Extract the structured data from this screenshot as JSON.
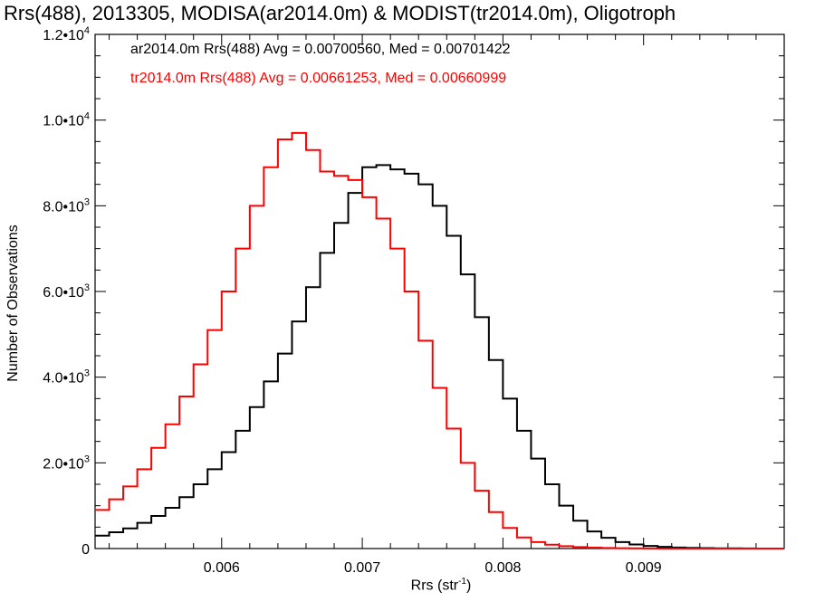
{
  "chart_data": {
    "type": "line",
    "title": "Rrs(488), 2013305, MODISA(ar2014.0m) & MODIST(tr2014.0m), Oligotroph",
    "xlabel_main": "Rrs (str",
    "xlabel_sup": "-1",
    "xlabel_tail": ")",
    "ylabel": "Number of Observations",
    "xlim": [
      0.0051,
      0.01
    ],
    "ylim": [
      0,
      12000
    ],
    "x_ticks": [
      {
        "value": 0.006,
        "label": "0.006"
      },
      {
        "value": 0.007,
        "label": "0.007"
      },
      {
        "value": 0.008,
        "label": "0.008"
      },
      {
        "value": 0.009,
        "label": "0.009"
      }
    ],
    "y_ticks": [
      {
        "value": 0,
        "base": "0",
        "exp": ""
      },
      {
        "value": 2000,
        "base": "2.0•10",
        "exp": "3"
      },
      {
        "value": 4000,
        "base": "4.0•10",
        "exp": "3"
      },
      {
        "value": 6000,
        "base": "6.0•10",
        "exp": "3"
      },
      {
        "value": 8000,
        "base": "8.0•10",
        "exp": "3"
      },
      {
        "value": 10000,
        "base": "1.0•10",
        "exp": "4"
      },
      {
        "value": 12000,
        "base": "1.2•10",
        "exp": "4"
      }
    ],
    "series": [
      {
        "name": "ar2014.0m Rrs(488) Avg = 0.00700560, Med = 0.00701422",
        "color": "#000000",
        "x": [
          0.0051,
          0.0052,
          0.0053,
          0.0054,
          0.0055,
          0.0056,
          0.0057,
          0.0058,
          0.0059,
          0.006,
          0.0061,
          0.0062,
          0.0063,
          0.0064,
          0.0065,
          0.0066,
          0.0067,
          0.0068,
          0.0069,
          0.007,
          0.0071,
          0.0072,
          0.0073,
          0.0074,
          0.0075,
          0.0076,
          0.0077,
          0.0078,
          0.0079,
          0.008,
          0.0081,
          0.0082,
          0.0083,
          0.0084,
          0.0085,
          0.0086,
          0.0087,
          0.0088,
          0.0089,
          0.009,
          0.0091,
          0.0092,
          0.0093,
          0.0094,
          0.0095,
          0.0096,
          0.0097,
          0.0098,
          0.0099,
          0.01
        ],
        "y": [
          300,
          380,
          470,
          600,
          760,
          950,
          1200,
          1500,
          1850,
          2250,
          2750,
          3300,
          3900,
          4550,
          5300,
          6100,
          6900,
          7600,
          8300,
          8900,
          8950,
          8850,
          8750,
          8500,
          8000,
          7300,
          6400,
          5400,
          4400,
          3500,
          2750,
          2100,
          1500,
          1000,
          650,
          400,
          250,
          150,
          95,
          60,
          40,
          25,
          15,
          10,
          6,
          4,
          2,
          1,
          0,
          0
        ]
      },
      {
        "name": "tr2014.0m Rrs(488) Avg = 0.00661253, Med = 0.00660999",
        "color": "#ff0000",
        "x": [
          0.0051,
          0.0052,
          0.0053,
          0.0054,
          0.0055,
          0.0056,
          0.0057,
          0.0058,
          0.0059,
          0.006,
          0.0061,
          0.0062,
          0.0063,
          0.0064,
          0.0065,
          0.0066,
          0.0067,
          0.0068,
          0.0069,
          0.007,
          0.0071,
          0.0072,
          0.0073,
          0.0074,
          0.0075,
          0.0076,
          0.0077,
          0.0078,
          0.0079,
          0.008,
          0.0081,
          0.0082,
          0.0083,
          0.0084,
          0.0085,
          0.0086,
          0.0087,
          0.0088,
          0.0089,
          0.009,
          0.0091,
          0.0092,
          0.0093,
          0.0094,
          0.0095,
          0.0096,
          0.0097,
          0.0098,
          0.0099,
          0.01
        ],
        "y": [
          900,
          1150,
          1450,
          1850,
          2350,
          2900,
          3550,
          4300,
          5100,
          6000,
          7000,
          8000,
          8900,
          9550,
          9700,
          9300,
          8800,
          8700,
          8600,
          8200,
          7700,
          7000,
          6000,
          4850,
          3750,
          2800,
          2000,
          1350,
          850,
          480,
          260,
          150,
          90,
          55,
          35,
          20,
          12,
          7,
          4,
          2,
          1,
          1,
          0,
          0,
          0,
          0,
          0,
          0,
          0,
          0
        ]
      }
    ]
  }
}
